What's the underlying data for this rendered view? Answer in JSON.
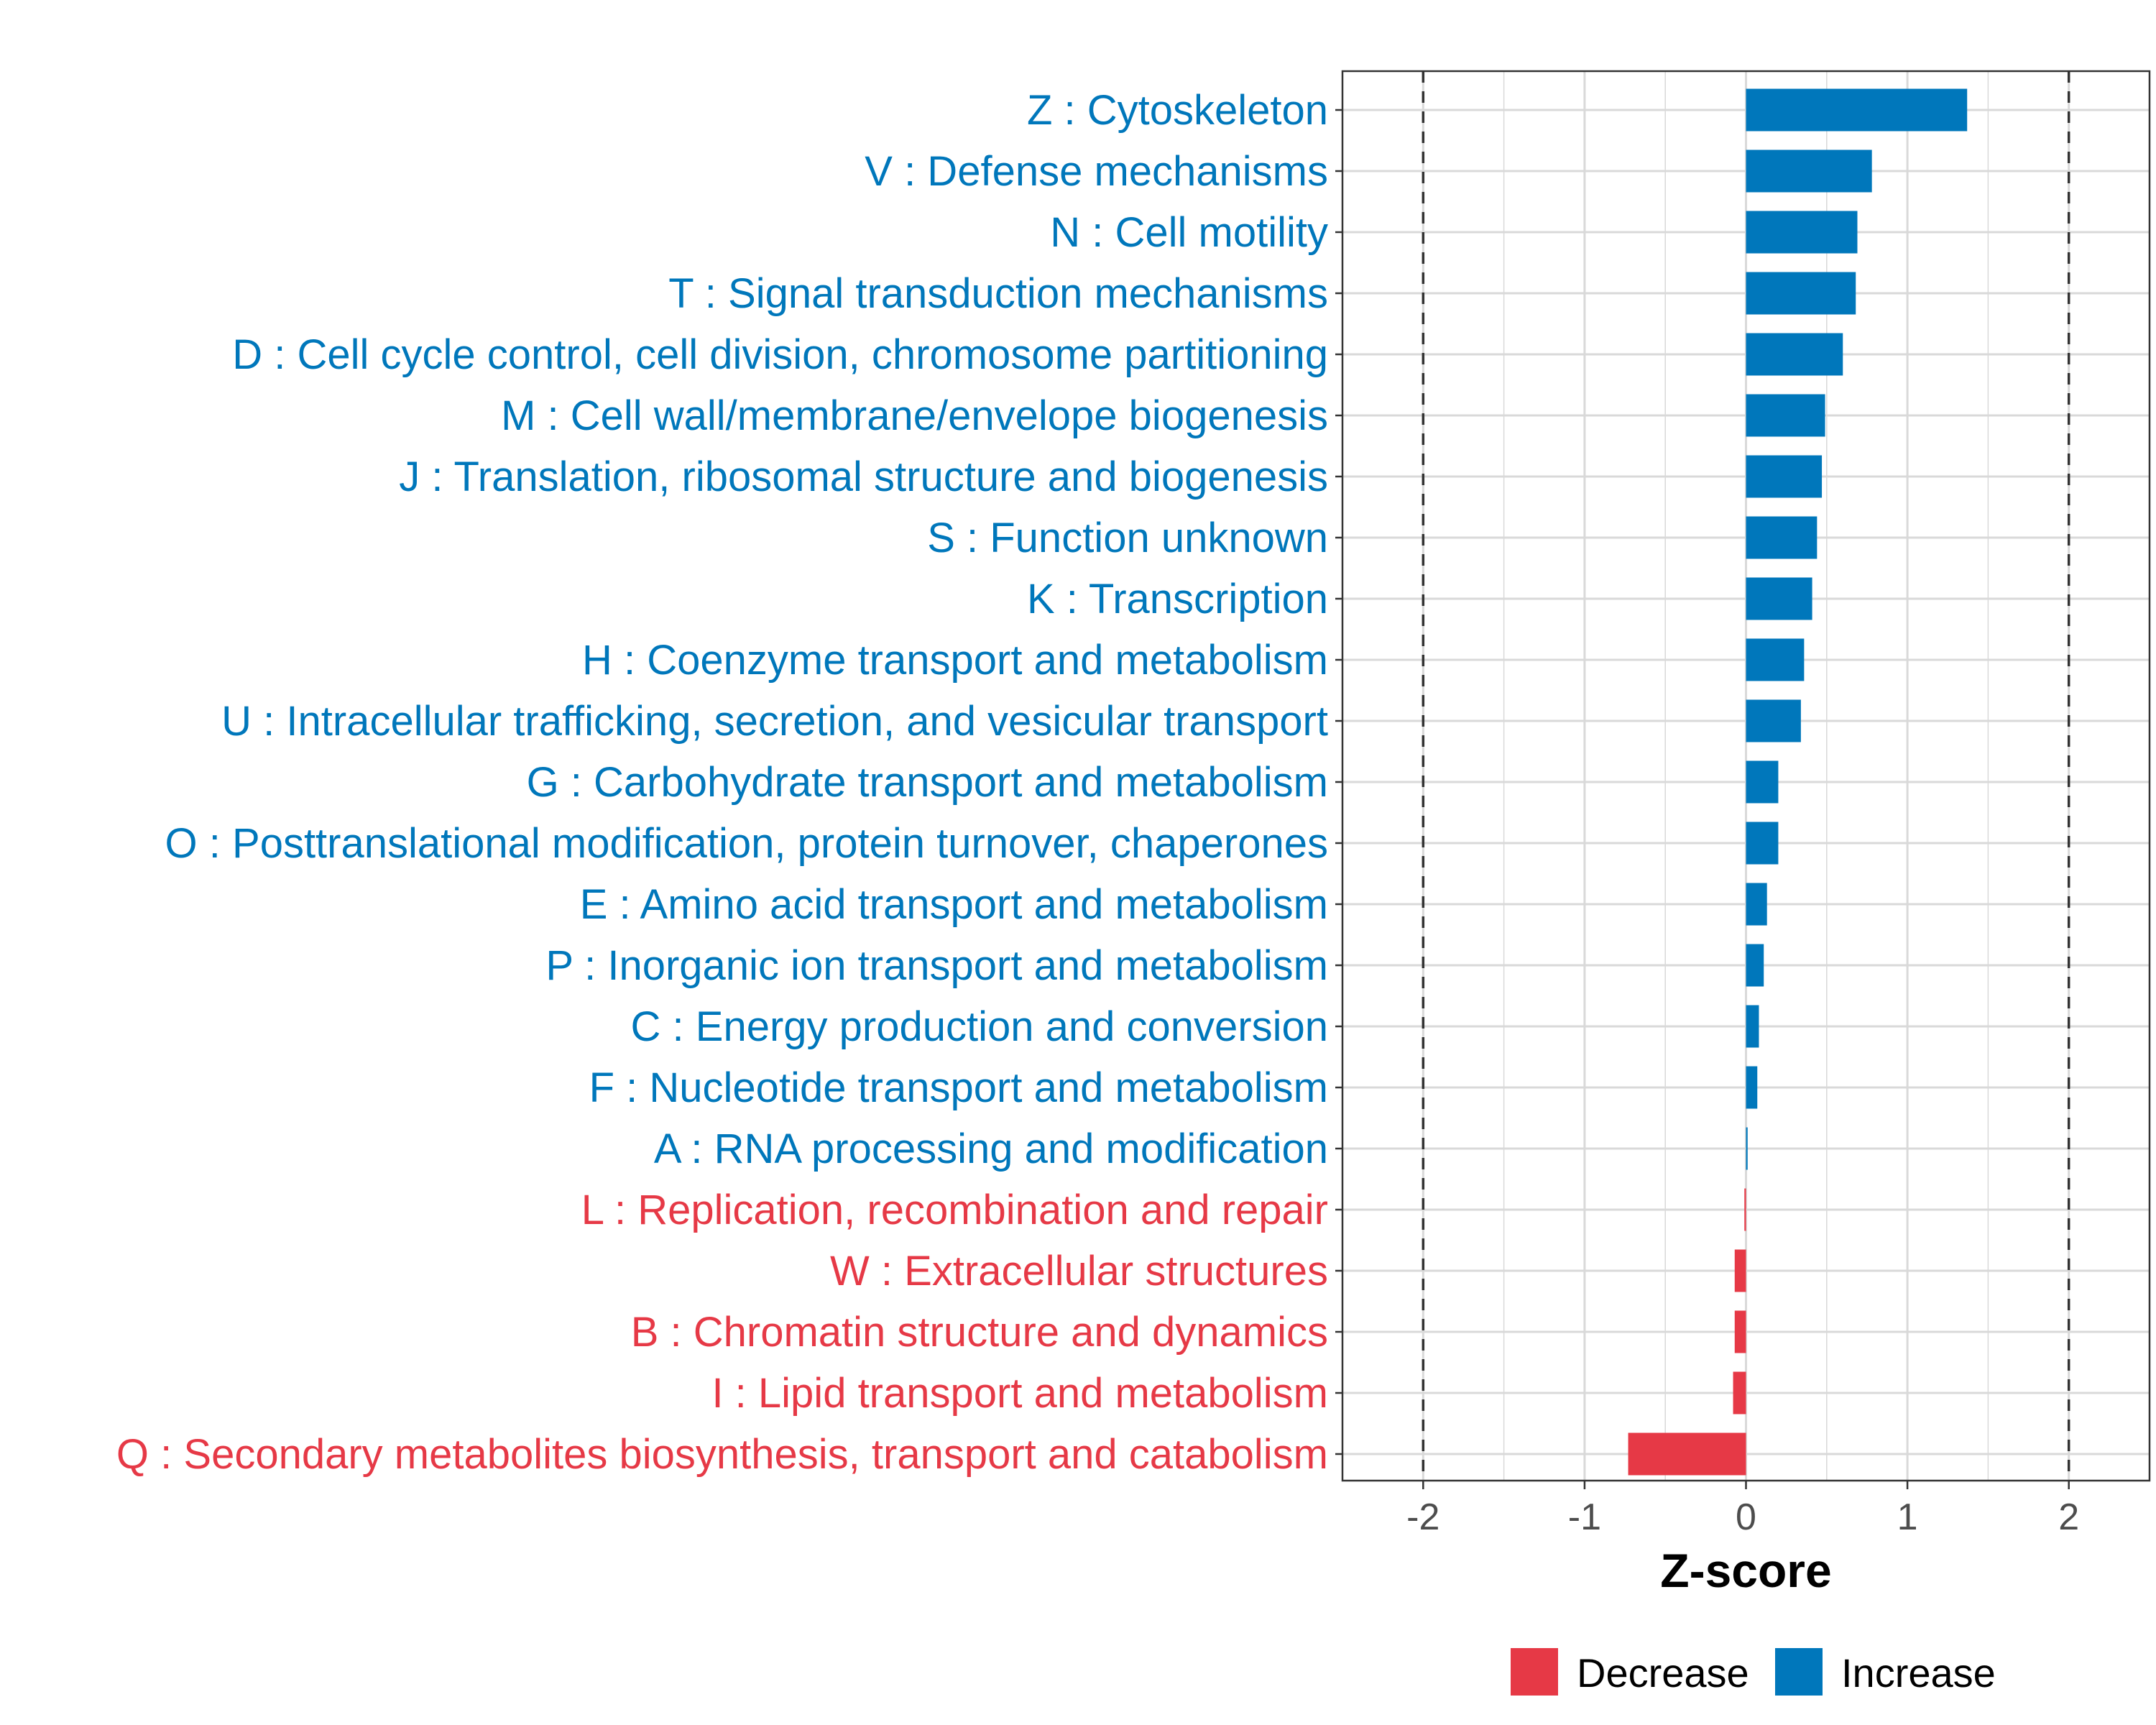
{
  "chart_data": {
    "type": "bar",
    "orientation": "horizontal",
    "xlabel": "Z-score",
    "xlim": [
      -2.5,
      2.5
    ],
    "xticks": [
      -2,
      -1,
      0,
      1,
      2
    ],
    "xtick_labels": [
      "-2",
      "-1",
      "0",
      "1",
      "2"
    ],
    "reference_lines": [
      -2,
      2
    ],
    "grid": true,
    "colors": {
      "Increase": "#0077bb",
      "Decrease": "#e63946"
    },
    "legend": {
      "placement": "bottom",
      "entries": [
        {
          "label": "Decrease",
          "color": "#e63946"
        },
        {
          "label": "Increase",
          "color": "#0077bb"
        }
      ]
    },
    "categories": [
      "Z : Cytoskeleton",
      "V : Defense mechanisms",
      "N : Cell motility",
      "T : Signal transduction mechanisms",
      "D : Cell cycle control, cell division, chromosome partitioning",
      "M : Cell wall/membrane/envelope biogenesis",
      "J : Translation, ribosomal structure and biogenesis",
      "S : Function unknown",
      "K : Transcription",
      "H : Coenzyme transport and metabolism",
      "U : Intracellular trafficking, secretion, and vesicular transport",
      "G : Carbohydrate transport and metabolism",
      "O : Posttranslational modification, protein turnover, chaperones",
      "E : Amino acid transport and metabolism",
      "P : Inorganic ion transport and metabolism",
      "C : Energy production and conversion",
      "F : Nucleotide transport and metabolism",
      "A : RNA processing and modification",
      "L : Replication, recombination and repair",
      "W : Extracellular structures",
      "B : Chromatin structure and dynamics",
      "I : Lipid transport and metabolism",
      "Q : Secondary metabolites biosynthesis, transport and catabolism"
    ],
    "values": [
      1.37,
      0.78,
      0.69,
      0.68,
      0.6,
      0.49,
      0.47,
      0.44,
      0.41,
      0.36,
      0.34,
      0.2,
      0.2,
      0.13,
      0.11,
      0.08,
      0.07,
      0.01,
      -0.01,
      -0.07,
      -0.07,
      -0.08,
      -0.73
    ],
    "direction": [
      "Increase",
      "Increase",
      "Increase",
      "Increase",
      "Increase",
      "Increase",
      "Increase",
      "Increase",
      "Increase",
      "Increase",
      "Increase",
      "Increase",
      "Increase",
      "Increase",
      "Increase",
      "Increase",
      "Increase",
      "Increase",
      "Decrease",
      "Decrease",
      "Decrease",
      "Decrease",
      "Decrease"
    ]
  }
}
